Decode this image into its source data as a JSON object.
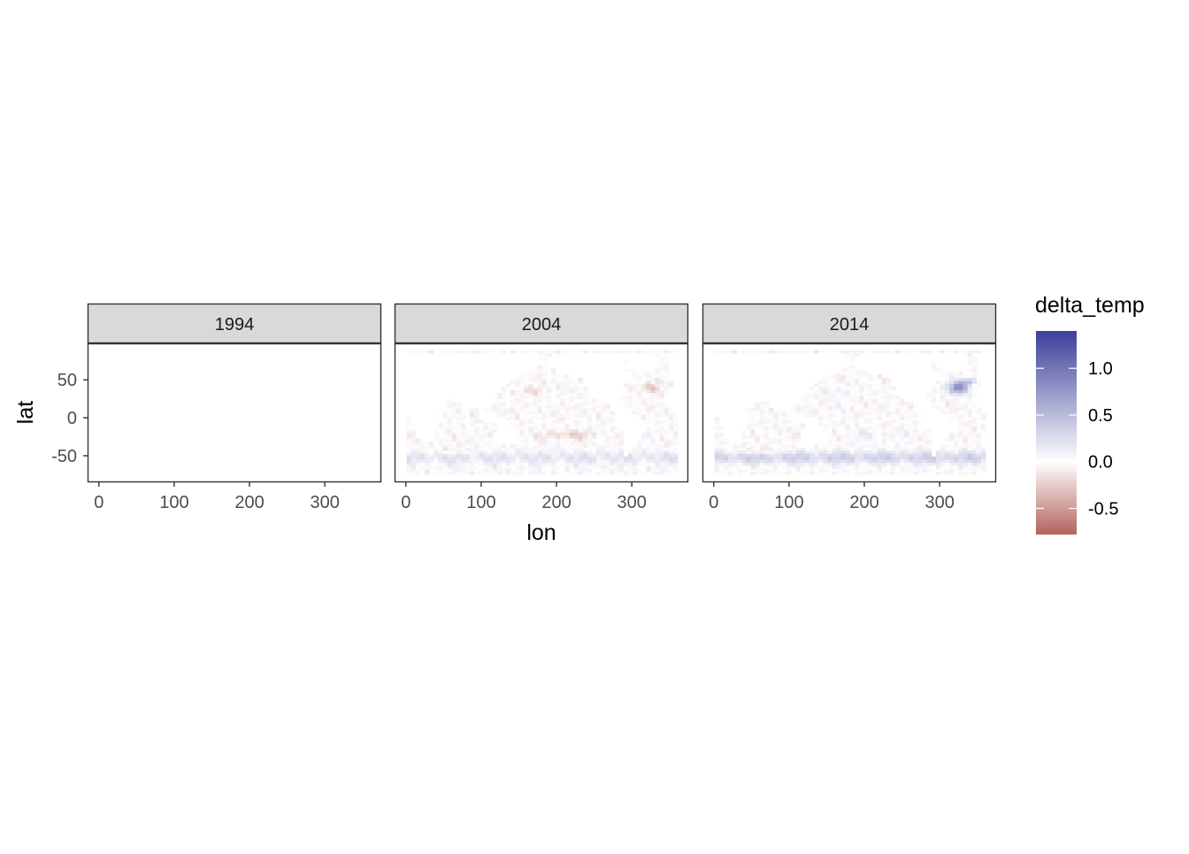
{
  "chart_data": {
    "type": "heatmap",
    "facet_variable": "year",
    "facets": [
      {
        "label": "1994",
        "has_data": false
      },
      {
        "label": "2004",
        "has_data": true
      },
      {
        "label": "2014",
        "has_data": true
      }
    ],
    "xlabel": "lon",
    "ylabel": "lat",
    "x_ticks": [
      "0",
      "100",
      "200",
      "300"
    ],
    "x_tick_values": [
      0,
      100,
      200,
      300
    ],
    "y_ticks": [
      "50",
      "0",
      "-50"
    ],
    "y_tick_values": [
      50,
      0,
      -50
    ],
    "xlim": [
      -15,
      375
    ],
    "ylim": [
      -85,
      98
    ],
    "data_extent": {
      "lon": [
        1,
        359
      ],
      "lat": [
        -75,
        87
      ]
    },
    "grid": false,
    "legend": {
      "title": "delta_temp",
      "position": "right",
      "ticks": [
        "1.0",
        "0.5",
        "0.0",
        "-0.5"
      ],
      "tick_values": [
        1.0,
        0.5,
        0.0,
        -0.5
      ],
      "limits": [
        -0.78,
        1.4
      ],
      "colors": {
        "low": "#b2635c",
        "mid": "#ffffff",
        "high": "#3b3f99"
      }
    }
  }
}
